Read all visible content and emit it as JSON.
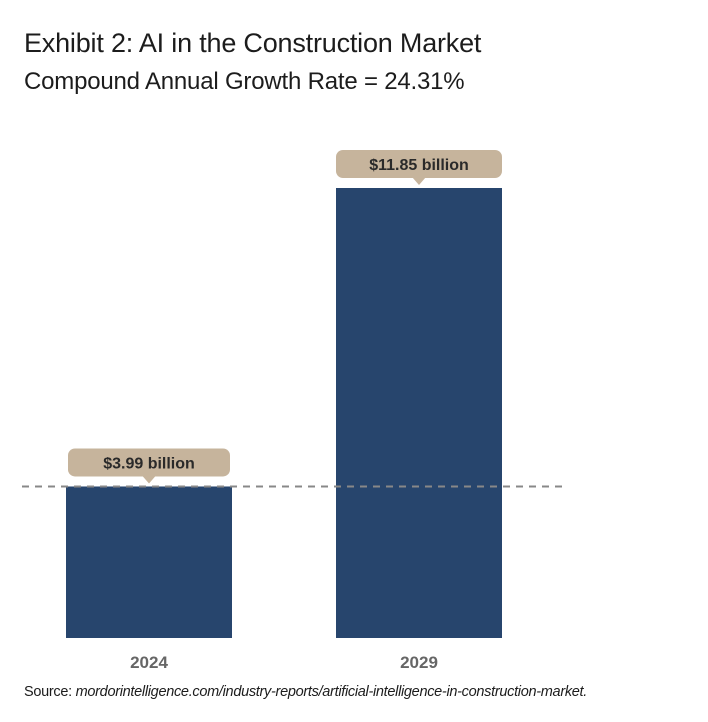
{
  "header": {
    "title": "Exhibit 2: AI in the Construction Market",
    "subtitle": "Compound Annual Growth Rate = 24.31%"
  },
  "source": {
    "label": "Source:",
    "url": "mordorintelligence.com/industry-reports/artificial-intelligence-in-construction-market."
  },
  "colors": {
    "bar": "#27456d",
    "callout": "#c6b49c",
    "reference_line": "#888888"
  },
  "chart_data": {
    "type": "bar",
    "title": "Exhibit 2: AI in the Construction Market",
    "subtitle": "Compound Annual Growth Rate = 24.31%",
    "categories": [
      "2024",
      "2029"
    ],
    "values": [
      3.99,
      11.85
    ],
    "data_labels": [
      "$3.99 billion",
      "$11.85 billion"
    ],
    "unit": "billion USD",
    "reference_line": 3.99,
    "ylim": [
      0,
      11.85
    ],
    "grid": false,
    "legend": "none"
  }
}
